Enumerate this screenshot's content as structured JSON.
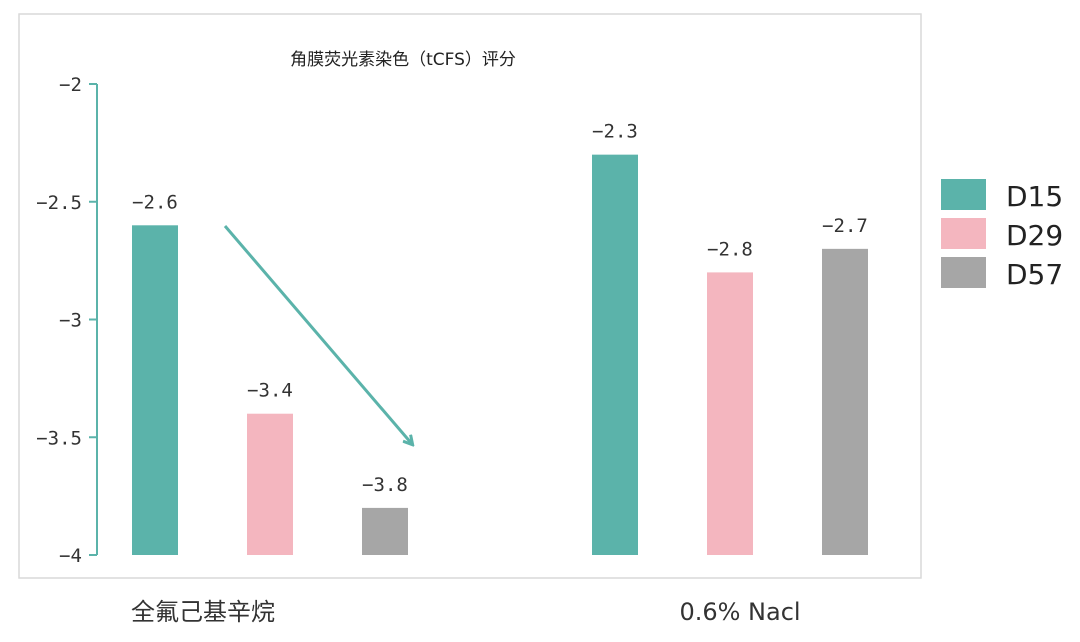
{
  "chart_data": {
    "type": "bar",
    "title": "角膜荧光素染色（tCFS）评分",
    "categories": [
      "全氟己基辛烷",
      "0.6% Nacl"
    ],
    "series": [
      {
        "name": "D15",
        "values": [
          -2.6,
          -2.3
        ],
        "color": "#5bb3aa"
      },
      {
        "name": "D29",
        "values": [
          -3.4,
          -2.8
        ],
        "color": "#f4b6bf"
      },
      {
        "name": "D57",
        "values": [
          -3.8,
          -2.7
        ],
        "color": "#a6a6a6"
      }
    ],
    "data_labels": [
      [
        "−2.6",
        "−3.4",
        "−3.8"
      ],
      [
        "−2.3",
        "−2.8",
        "−2.7"
      ]
    ],
    "yticks": [
      -2,
      -2.5,
      -3,
      -3.5,
      -4
    ],
    "ytick_labels": [
      "−2",
      "−2.5",
      "−3",
      "−3.5",
      "−4"
    ],
    "ylim": [
      -4,
      -2
    ],
    "xlabel": "",
    "ylabel": "",
    "grid": false,
    "legend_position": "right",
    "axis_color": "#5bb3aa",
    "annotation": {
      "type": "arrow",
      "description": "downward trend arrow over 全氟己基辛烷 group",
      "color": "#5bb3aa"
    }
  }
}
